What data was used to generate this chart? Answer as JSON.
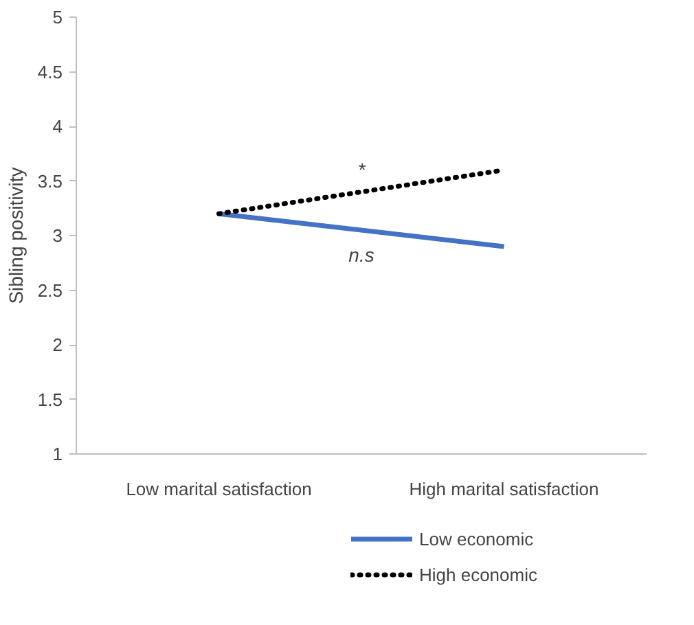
{
  "chart_data": {
    "type": "line",
    "ylabel": "Sibling positivity",
    "categories": [
      "Low marital satisfaction",
      "High marital satisfaction"
    ],
    "series": [
      {
        "name": "Low economic",
        "color": "#4472c4",
        "values": [
          3.2,
          2.9
        ],
        "line_style": "solid"
      },
      {
        "name": "High economic",
        "color": "#000000",
        "values": [
          3.2,
          3.6
        ],
        "line_style": "dotted"
      }
    ],
    "ylim": [
      1,
      5
    ],
    "yticks": [
      1,
      1.5,
      2,
      2.5,
      3,
      3.5,
      4,
      4.5,
      5
    ],
    "annotations": [
      "*",
      "n.s"
    ],
    "grid": false,
    "legend": "bottom",
    "marker": "none"
  }
}
